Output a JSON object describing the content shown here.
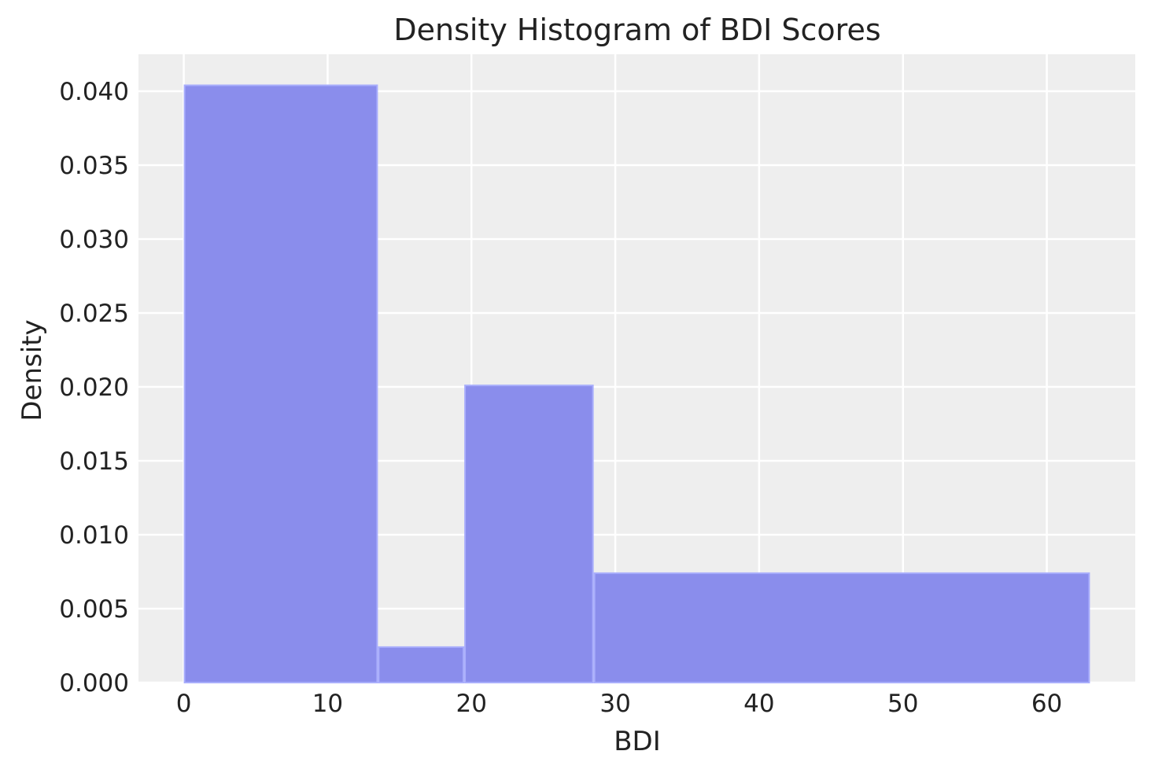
{
  "chart_data": {
    "type": "bar",
    "title": "Density Histogram of BDI Scores",
    "xlabel": "BDI",
    "ylabel": "Density",
    "xlim": [
      -3.15,
      66.15
    ],
    "ylim": [
      0,
      0.0425
    ],
    "x_ticks": [
      0,
      10,
      20,
      30,
      40,
      50,
      60
    ],
    "x_tick_labels": [
      "0",
      "10",
      "20",
      "30",
      "40",
      "50",
      "60"
    ],
    "y_ticks": [
      0,
      0.005,
      0.01,
      0.015,
      0.02,
      0.025,
      0.03,
      0.035,
      0.04
    ],
    "y_tick_labels": [
      "0.000",
      "0.005",
      "0.010",
      "0.015",
      "0.020",
      "0.025",
      "0.030",
      "0.035",
      "0.040"
    ],
    "grid": true,
    "bins": [
      {
        "start": 0,
        "end": 13.5,
        "density": 0.0404
      },
      {
        "start": 13.5,
        "end": 19.5,
        "density": 0.0024
      },
      {
        "start": 19.5,
        "end": 28.5,
        "density": 0.0201
      },
      {
        "start": 28.5,
        "end": 63,
        "density": 0.0074
      }
    ],
    "colors": {
      "bar_fill": "#8a8dec",
      "plot_background": "#eeeeee",
      "grid": "#ffffff",
      "text": "#222222"
    }
  }
}
